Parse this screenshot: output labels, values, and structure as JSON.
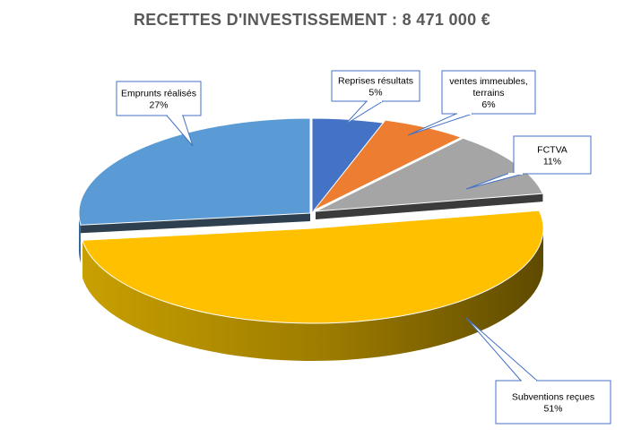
{
  "chart_data": {
    "type": "pie",
    "title": "RECETTES D'INVESTISSEMENT  : 8 471 000 €",
    "total": "8 471 000 €",
    "unit": "%",
    "three_d": true,
    "exploded": true,
    "slices": [
      {
        "label": "Reprises résultats",
        "label_lines": [
          "Reprises résultats"
        ],
        "value_label": "5%",
        "value": 5,
        "color": "#4472C4"
      },
      {
        "label": "ventes immeubles, terrains",
        "label_lines": [
          "ventes immeubles,",
          "terrains"
        ],
        "value_label": "6%",
        "value": 6,
        "color": "#ED7D31"
      },
      {
        "label": "FCTVA",
        "label_lines": [
          "FCTVA"
        ],
        "value_label": "11%",
        "value": 11,
        "color": "#A5A5A5"
      },
      {
        "label": "Subventions reçues",
        "label_lines": [
          "Subventions reçues"
        ],
        "value_label": "51%",
        "value": 51,
        "color": "#FFC000"
      },
      {
        "label": "Emprunts réalisés",
        "label_lines": [
          "Emprunts réalisés"
        ],
        "value_label": "27%",
        "value": 27,
        "color": "#5B9BD5"
      }
    ]
  }
}
